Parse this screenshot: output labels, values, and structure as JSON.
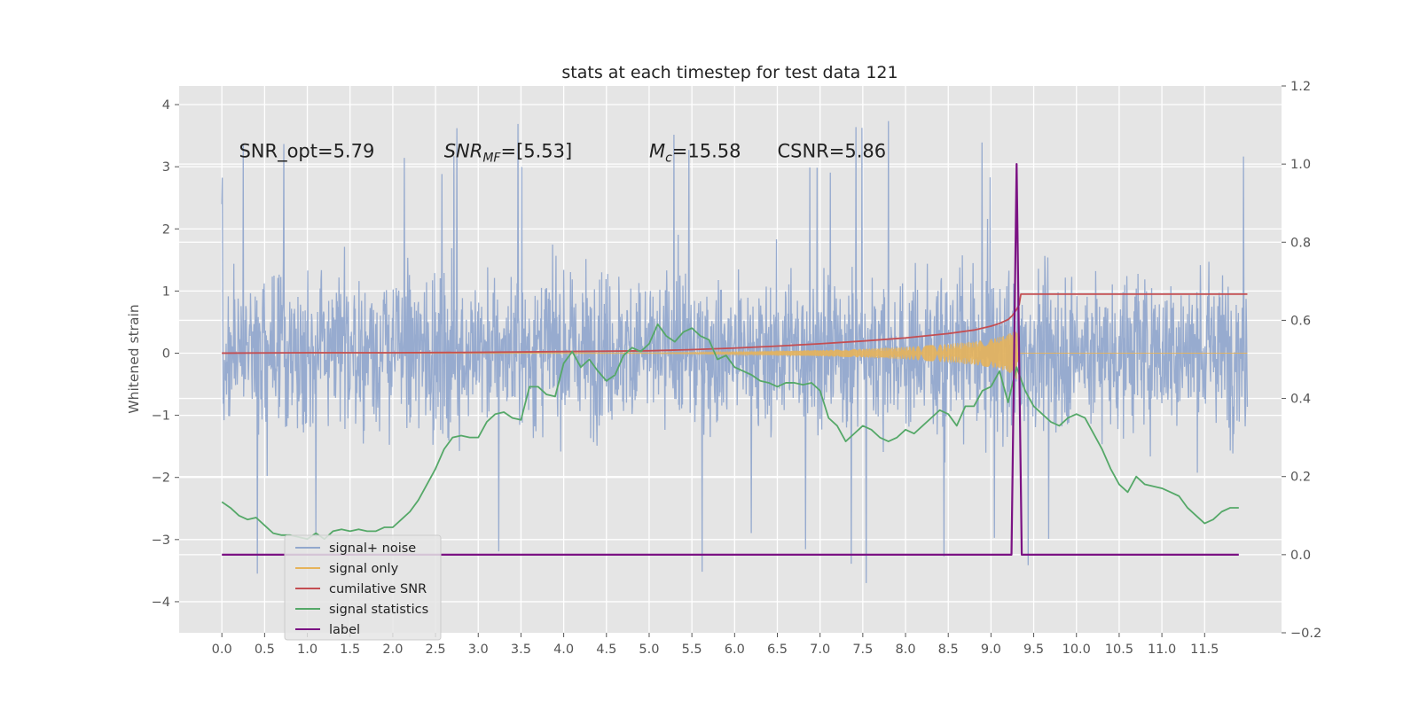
{
  "chart_data": {
    "type": "line",
    "title": "stats at each timestep for test data 121",
    "ylabel": "Whitened strain",
    "xlabel": "",
    "xlim": [
      -0.5,
      12.4
    ],
    "ylim": [
      -4.5,
      4.3
    ],
    "y2lim": [
      -0.2,
      1.2
    ],
    "x_ticks": [
      0.0,
      0.5,
      1.0,
      1.5,
      2.0,
      2.5,
      3.0,
      3.5,
      4.0,
      4.5,
      5.0,
      5.5,
      6.0,
      6.5,
      7.0,
      7.5,
      8.0,
      8.5,
      9.0,
      9.5,
      10.0,
      10.5,
      11.0,
      11.5
    ],
    "x_tick_labels": [
      "0.0",
      "0.5",
      "1.0",
      "1.5",
      "2.0",
      "2.5",
      "3.0",
      "3.5",
      "4.0",
      "4.5",
      "5.0",
      "5.5",
      "6.0",
      "6.5",
      "7.0",
      "7.5",
      "8.0",
      "8.5",
      "9.0",
      "9.5",
      "10.0",
      "10.5",
      "11.0",
      "11.5"
    ],
    "y_ticks": [
      -4,
      -3,
      -2,
      -1,
      0,
      1,
      2,
      3,
      4
    ],
    "y_tick_labels": [
      "−4",
      "−3",
      "−2",
      "−1",
      "0",
      "1",
      "2",
      "3",
      "4"
    ],
    "y2_ticks": [
      -0.2,
      0.0,
      0.2,
      0.4,
      0.6,
      0.8,
      1.0,
      1.2
    ],
    "y2_tick_labels": [
      "−0.2",
      "0.0",
      "0.2",
      "0.4",
      "0.6",
      "0.8",
      "1.0",
      "1.2"
    ],
    "grid": true,
    "legend_position": "lower-left",
    "annotations": [
      {
        "text": "SNR_opt=5.79",
        "x": 0.2,
        "y": 3.15
      },
      {
        "text": "SNR_MF=[5.53]",
        "x": 2.6,
        "y": 3.15
      },
      {
        "text": "M_c=15.58",
        "x": 5.0,
        "y": 3.15
      },
      {
        "text": "CSNR=5.86",
        "x": 6.5,
        "y": 3.15
      }
    ],
    "series": [
      {
        "name": "signal+ noise",
        "axis": "left",
        "color": "#92a8cd",
        "kind": "noise",
        "x_range": [
          0.0,
          12.0
        ],
        "band": [
          -2.2,
          2.4
        ],
        "spike_extremes": [
          -4.1,
          3.85
        ]
      },
      {
        "name": "signal only",
        "axis": "left",
        "color": "#e6b35a",
        "kind": "chirp",
        "x_range": [
          0.0,
          9.32
        ],
        "envelope": {
          "x": [
            0.0,
            5.0,
            6.0,
            7.0,
            7.5,
            8.0,
            8.5,
            8.8,
            9.0,
            9.1,
            9.2,
            9.25,
            9.3,
            9.32
          ],
          "amp": [
            0.0,
            0.005,
            0.02,
            0.05,
            0.07,
            0.1,
            0.15,
            0.19,
            0.23,
            0.26,
            0.31,
            0.37,
            0.45,
            0.0
          ]
        }
      },
      {
        "name": "cumilative SNR",
        "axis": "right",
        "color": "#c44e52",
        "x": [
          0.0,
          1.0,
          2.0,
          3.0,
          4.0,
          5.0,
          5.5,
          6.0,
          6.5,
          7.0,
          7.5,
          8.0,
          8.5,
          8.8,
          9.0,
          9.1,
          9.2,
          9.25,
          9.3,
          9.33,
          9.35,
          12.0
        ],
        "values": [
          0.516,
          0.517,
          0.517,
          0.518,
          0.52,
          0.522,
          0.525,
          0.529,
          0.534,
          0.54,
          0.547,
          0.555,
          0.566,
          0.575,
          0.585,
          0.592,
          0.602,
          0.612,
          0.628,
          0.64,
          0.667,
          0.667
        ]
      },
      {
        "name": "signal statistics",
        "axis": "right",
        "color": "#55a868",
        "x": [
          0.0,
          0.1,
          0.2,
          0.3,
          0.4,
          0.5,
          0.6,
          0.7,
          0.8,
          0.9,
          1.0,
          1.1,
          1.2,
          1.3,
          1.4,
          1.5,
          1.6,
          1.7,
          1.8,
          1.9,
          2.0,
          2.1,
          2.2,
          2.3,
          2.4,
          2.5,
          2.6,
          2.7,
          2.8,
          2.9,
          3.0,
          3.1,
          3.2,
          3.3,
          3.4,
          3.5,
          3.6,
          3.7,
          3.8,
          3.9,
          4.0,
          4.1,
          4.2,
          4.3,
          4.4,
          4.5,
          4.6,
          4.7,
          4.8,
          4.9,
          5.0,
          5.1,
          5.2,
          5.3,
          5.4,
          5.5,
          5.6,
          5.7,
          5.8,
          5.9,
          6.0,
          6.1,
          6.2,
          6.3,
          6.4,
          6.5,
          6.6,
          6.7,
          6.8,
          6.9,
          7.0,
          7.1,
          7.2,
          7.3,
          7.4,
          7.5,
          7.6,
          7.7,
          7.8,
          7.9,
          8.0,
          8.1,
          8.2,
          8.3,
          8.4,
          8.5,
          8.6,
          8.7,
          8.8,
          8.9,
          9.0,
          9.1,
          9.2,
          9.3,
          9.4,
          9.5,
          9.6,
          9.7,
          9.8,
          9.9,
          10.0,
          10.1,
          10.2,
          10.3,
          10.4,
          10.5,
          10.6,
          10.7,
          10.8,
          10.9,
          11.0,
          11.1,
          11.2,
          11.3,
          11.4,
          11.5,
          11.6,
          11.7,
          11.8,
          11.9
        ],
        "values": [
          0.135,
          0.12,
          0.1,
          0.09,
          0.095,
          0.075,
          0.055,
          0.05,
          0.05,
          0.045,
          0.04,
          0.055,
          0.04,
          0.06,
          0.065,
          0.06,
          0.065,
          0.06,
          0.06,
          0.07,
          0.07,
          0.09,
          0.11,
          0.14,
          0.18,
          0.22,
          0.27,
          0.3,
          0.305,
          0.3,
          0.3,
          0.34,
          0.36,
          0.365,
          0.35,
          0.345,
          0.43,
          0.43,
          0.41,
          0.405,
          0.49,
          0.52,
          0.48,
          0.5,
          0.47,
          0.445,
          0.46,
          0.51,
          0.53,
          0.52,
          0.54,
          0.59,
          0.56,
          0.545,
          0.57,
          0.58,
          0.56,
          0.55,
          0.5,
          0.51,
          0.48,
          0.47,
          0.46,
          0.445,
          0.44,
          0.43,
          0.44,
          0.44,
          0.435,
          0.44,
          0.42,
          0.35,
          0.33,
          0.29,
          0.31,
          0.33,
          0.32,
          0.3,
          0.29,
          0.3,
          0.32,
          0.31,
          0.33,
          0.35,
          0.37,
          0.36,
          0.33,
          0.38,
          0.38,
          0.42,
          0.43,
          0.47,
          0.39,
          0.48,
          0.42,
          0.38,
          0.36,
          0.34,
          0.33,
          0.35,
          0.36,
          0.35,
          0.31,
          0.27,
          0.22,
          0.18,
          0.16,
          0.2,
          0.18,
          0.175,
          0.17,
          0.16,
          0.15,
          0.12,
          0.1,
          0.08,
          0.09,
          0.11,
          0.12,
          0.12
        ]
      },
      {
        "name": "label",
        "axis": "right",
        "color": "#7b1283",
        "x": [
          0.0,
          9.24,
          9.3,
          9.36,
          11.9
        ],
        "values": [
          0.0,
          0.0,
          1.0,
          0.0,
          0.0
        ]
      }
    ]
  }
}
